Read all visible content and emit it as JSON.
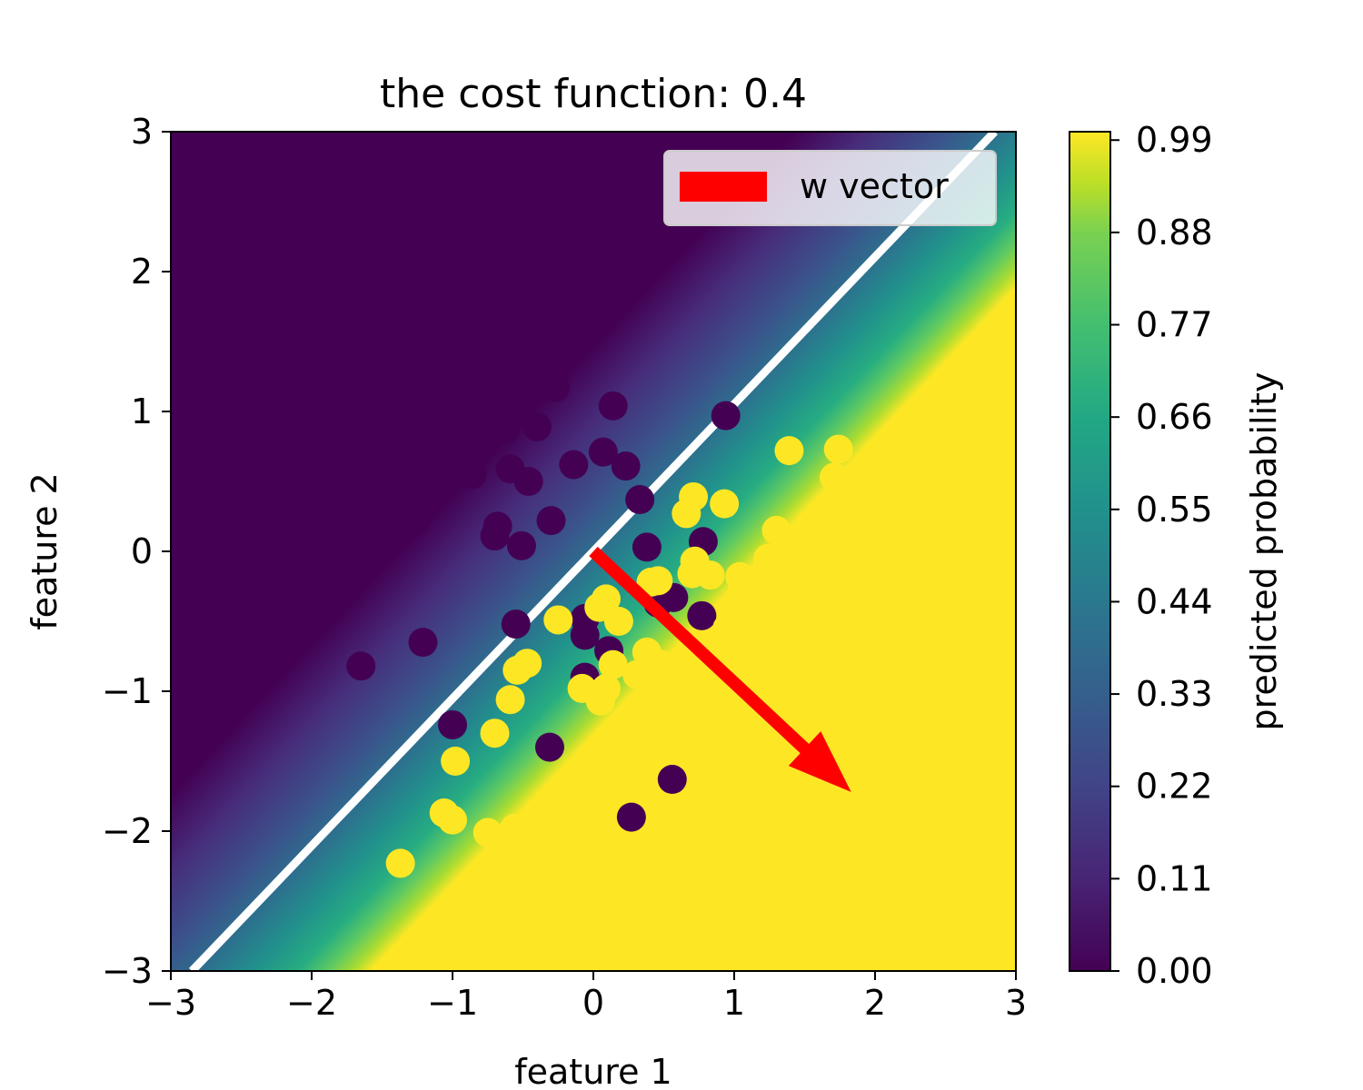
{
  "chart_data": {
    "type": "scatter",
    "title": "the cost function: 0.4",
    "xlabel": "feature 1",
    "ylabel": "feature 2",
    "xlim": [
      -3,
      3
    ],
    "ylim": [
      -3,
      3
    ],
    "xticks": [
      -3,
      -2,
      -1,
      0,
      1,
      2,
      3
    ],
    "yticks": [
      -3,
      -2,
      -1,
      0,
      1,
      2,
      3
    ],
    "xtick_labels": [
      "−3",
      "−2",
      "−1",
      "0",
      "1",
      "2",
      "3"
    ],
    "ytick_labels": [
      "−3",
      "−2",
      "−1",
      "0",
      "1",
      "2",
      "3"
    ],
    "grid": false,
    "background": "predicted probability heatmap",
    "decision_boundary": {
      "x": [
        -2.85,
        2.85
      ],
      "y": [
        -3,
        3
      ],
      "color": "#ffffff"
    },
    "w_vector": {
      "start": [
        0,
        0
      ],
      "end": [
        1.83,
        -1.72
      ],
      "color": "#ff0000",
      "label": "w vector"
    },
    "legend": {
      "position": "top-right",
      "entries": [
        "w vector"
      ]
    },
    "colorbar": {
      "label": "predicted probability",
      "ticks": [
        0.0,
        0.11,
        0.22,
        0.33,
        0.44,
        0.55,
        0.66,
        0.77,
        0.88,
        0.99
      ],
      "tick_labels": [
        "0.00",
        "0.11",
        "0.22",
        "0.33",
        "0.44",
        "0.55",
        "0.66",
        "0.77",
        "0.88",
        "0.99"
      ],
      "colormap": "viridis"
    },
    "series": [
      {
        "color": "#440154",
        "points": [
          [
            -1.67,
            2.02
          ],
          [
            -0.37,
            1.87
          ],
          [
            -0.53,
            1.46
          ],
          [
            -0.95,
            1.29
          ],
          [
            -1.3,
            1.4
          ],
          [
            -1.4,
            1.03
          ],
          [
            -1.17,
            1.03
          ],
          [
            -0.27,
            1.17
          ],
          [
            0.14,
            1.04
          ],
          [
            0.94,
            0.97
          ],
          [
            -0.63,
            0.87
          ],
          [
            -0.4,
            0.89
          ],
          [
            -0.84,
            0.72
          ],
          [
            -0.86,
            0.55
          ],
          [
            -0.59,
            0.59
          ],
          [
            -0.46,
            0.5
          ],
          [
            -0.14,
            0.62
          ],
          [
            0.07,
            0.71
          ],
          [
            0.23,
            0.61
          ],
          [
            -1.88,
            0.55
          ],
          [
            -1.34,
            0.45
          ],
          [
            -1.27,
            0.21
          ],
          [
            -1.51,
            0.12
          ],
          [
            -0.68,
            0.18
          ],
          [
            -0.7,
            0.11
          ],
          [
            -0.51,
            0.04
          ],
          [
            -0.3,
            0.22
          ],
          [
            0.33,
            0.37
          ],
          [
            0.38,
            0.03
          ],
          [
            0.78,
            0.07
          ],
          [
            -0.55,
            -0.52
          ],
          [
            -0.06,
            -0.48
          ],
          [
            -0.06,
            -0.6
          ],
          [
            0.11,
            -0.71
          ],
          [
            0.46,
            -0.37
          ],
          [
            0.57,
            -0.33
          ],
          [
            0.77,
            -0.46
          ],
          [
            -1.65,
            -0.82
          ],
          [
            -1.21,
            -0.65
          ],
          [
            -0.06,
            -0.9
          ],
          [
            -1.0,
            -1.24
          ],
          [
            -0.31,
            -1.4
          ],
          [
            0.56,
            -1.63
          ],
          [
            0.27,
            -1.9
          ]
        ]
      },
      {
        "color": "#fde725",
        "points": [
          [
            1.39,
            0.72
          ],
          [
            1.74,
            0.73
          ],
          [
            1.71,
            0.53
          ],
          [
            2.2,
            0.86
          ],
          [
            2.57,
            0.85
          ],
          [
            2.27,
            0.54
          ],
          [
            2.11,
            0.26
          ],
          [
            1.77,
            0.04
          ],
          [
            1.58,
            0.0
          ],
          [
            1.69,
            -0.05
          ],
          [
            1.3,
            0.15
          ],
          [
            1.24,
            -0.05
          ],
          [
            0.71,
            0.39
          ],
          [
            0.66,
            0.27
          ],
          [
            0.93,
            0.34
          ],
          [
            0.72,
            -0.07
          ],
          [
            0.7,
            -0.16
          ],
          [
            0.83,
            -0.17
          ],
          [
            1.04,
            -0.18
          ],
          [
            1.06,
            -0.26
          ],
          [
            0.46,
            -0.21
          ],
          [
            0.41,
            -0.22
          ],
          [
            0.09,
            -0.34
          ],
          [
            0.18,
            -0.5
          ],
          [
            0.04,
            -0.4
          ],
          [
            -0.25,
            -0.49
          ],
          [
            1.04,
            -0.44
          ],
          [
            0.95,
            -0.55
          ],
          [
            1.37,
            -0.43
          ],
          [
            0.38,
            -0.72
          ],
          [
            0.49,
            -0.81
          ],
          [
            0.14,
            -0.81
          ],
          [
            0.31,
            -0.88
          ],
          [
            0.09,
            -0.98
          ],
          [
            0.05,
            -1.07
          ],
          [
            -0.08,
            -0.98
          ],
          [
            -0.47,
            -0.8
          ],
          [
            -0.54,
            -0.85
          ],
          [
            -0.59,
            -1.06
          ],
          [
            -0.7,
            -1.3
          ],
          [
            -0.98,
            -1.5
          ],
          [
            -1.06,
            -1.87
          ],
          [
            -1.0,
            -1.92
          ],
          [
            -0.75,
            -2.01
          ],
          [
            -0.56,
            -1.98
          ],
          [
            -1.37,
            -2.23
          ]
        ]
      }
    ]
  }
}
